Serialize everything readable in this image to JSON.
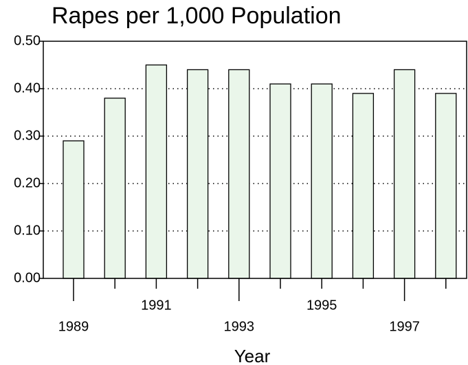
{
  "chart_data": {
    "type": "bar",
    "title": "Rapes per 1,000 Population",
    "x_label": "Year",
    "categories": [
      "1989",
      null,
      "1991",
      null,
      "1993",
      null,
      "1995",
      null,
      "1997",
      null
    ],
    "values": [
      0.29,
      0.38,
      0.45,
      0.44,
      0.44,
      0.41,
      0.41,
      0.39,
      0.44,
      0.39
    ],
    "color": "#eaf6ea",
    "ylim": [
      0,
      0.5
    ],
    "yticks": [
      {
        "value": 0,
        "label": "0.00"
      },
      {
        "value": 0.1,
        "label": "0.10"
      },
      {
        "value": 0.2,
        "label": "0.20"
      },
      {
        "value": 0.3,
        "label": "0.30"
      },
      {
        "value": 0.4,
        "label": "0.40"
      },
      {
        "value": 0.5,
        "label": "0.50"
      }
    ],
    "grid": true
  }
}
